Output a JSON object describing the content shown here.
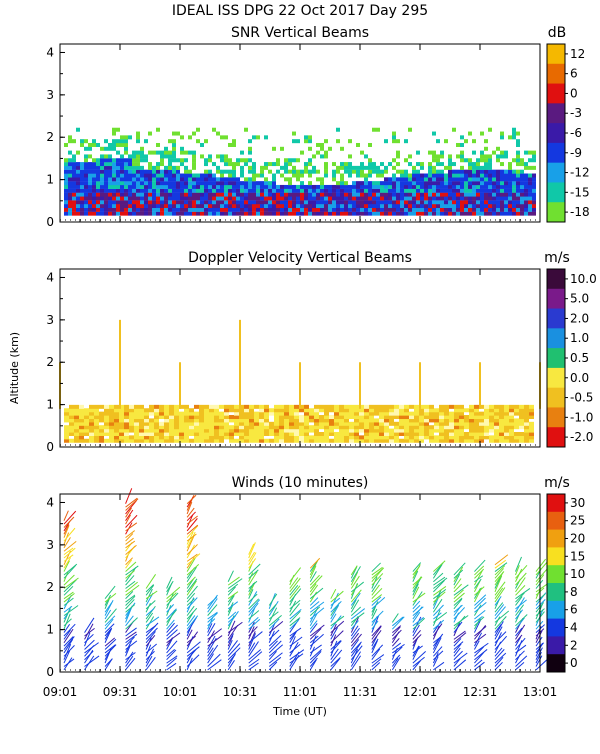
{
  "header": {
    "line1": "IDEAL ISS DPG  22 Oct 2017 Day 295"
  },
  "axes": {
    "ylabel": "Altitude (km)",
    "xlabel": "Time (UT)",
    "x_ticks": [
      "09:01",
      "09:31",
      "10:01",
      "10:31",
      "11:01",
      "11:31",
      "12:01",
      "12:31",
      "13:01"
    ],
    "y_ticks": [
      "0",
      "1",
      "2",
      "3",
      "4"
    ],
    "ylim_km": [
      0,
      4.2
    ]
  },
  "chart_data": [
    {
      "type": "heatmap",
      "title": "SNR Vertical Beams",
      "unit": "dB",
      "colorbar_ticks": [
        "12",
        "6",
        "0",
        "-3",
        "-6",
        "-9",
        "-12",
        "-15",
        "-18"
      ],
      "colorbar_colors": [
        "#f5b800",
        "#e86a00",
        "#e01010",
        "#5a1a80",
        "#3a1aa8",
        "#1438e0",
        "#18a0e8",
        "#10c8a8",
        "#70e030"
      ],
      "x_range": [
        "09:01",
        "13:01"
      ],
      "y_range_km": [
        0.1,
        2.3
      ],
      "description_values": {
        "dense_echo_top_km": 1.0,
        "sparse_echo_top_km": 2.2,
        "strong_layer_km": [
          0.1,
          0.7
        ]
      }
    },
    {
      "type": "heatmap",
      "title": "Doppler Velocity Vertical Beams",
      "unit": "m/s",
      "colorbar_ticks": [
        "10.0",
        "5.0",
        "2.0",
        "1.0",
        "0.5",
        "0.0",
        "-0.5",
        "-1.0",
        "-2.0"
      ],
      "colorbar_colors": [
        "#3a0a3a",
        "#7a1a8a",
        "#2a3ad0",
        "#1a90e0",
        "#20c070",
        "#f8e840",
        "#f0c020",
        "#e88010",
        "#e01010"
      ],
      "x_range": [
        "09:01",
        "13:01"
      ],
      "y_range_km": [
        0.1,
        0.9
      ],
      "description_values": {
        "dominant_value_ms": 0.0
      }
    },
    {
      "type": "scatter",
      "title": "Winds (10 minutes)",
      "unit": "m/s",
      "colorbar_ticks": [
        "30",
        "25",
        "20",
        "15",
        "10",
        "8",
        "6",
        "4",
        "2",
        "0"
      ],
      "colorbar_colors": [
        "#e01010",
        "#e86010",
        "#f0a010",
        "#f8e020",
        "#70e030",
        "#20c080",
        "#18a0e8",
        "#1438e0",
        "#3a1aa8",
        "#100010"
      ],
      "profile_times": [
        "09:01",
        "09:11",
        "09:21",
        "09:31",
        "09:41",
        "09:51",
        "10:01",
        "10:11",
        "10:21",
        "10:31",
        "10:41",
        "10:51",
        "11:01",
        "11:11",
        "11:21",
        "11:31",
        "11:41",
        "11:51",
        "12:01",
        "12:11",
        "12:21",
        "12:31",
        "12:41",
        "12:51"
      ],
      "profile_top_km": [
        3.6,
        1.0,
        1.8,
        4.0,
        2.0,
        2.0,
        4.0,
        1.6,
        2.2,
        2.8,
        1.6,
        2.2,
        2.5,
        1.8,
        2.3,
        2.4,
        1.2,
        2.4,
        2.4,
        2.3,
        2.4,
        2.6,
        2.4,
        2.4
      ]
    }
  ]
}
